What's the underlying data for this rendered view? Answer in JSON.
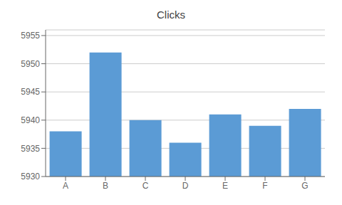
{
  "chart_data": {
    "type": "bar",
    "title": "Clicks",
    "categories": [
      "A",
      "B",
      "C",
      "D",
      "E",
      "F",
      "G"
    ],
    "values": [
      5938,
      5952,
      5940,
      5936,
      5941,
      5939,
      5942
    ],
    "color": "#5B9BD5",
    "ylim": [
      5930,
      5956
    ],
    "yticks": [
      5930,
      5935,
      5940,
      5945,
      5950,
      5955
    ],
    "grid": true
  }
}
